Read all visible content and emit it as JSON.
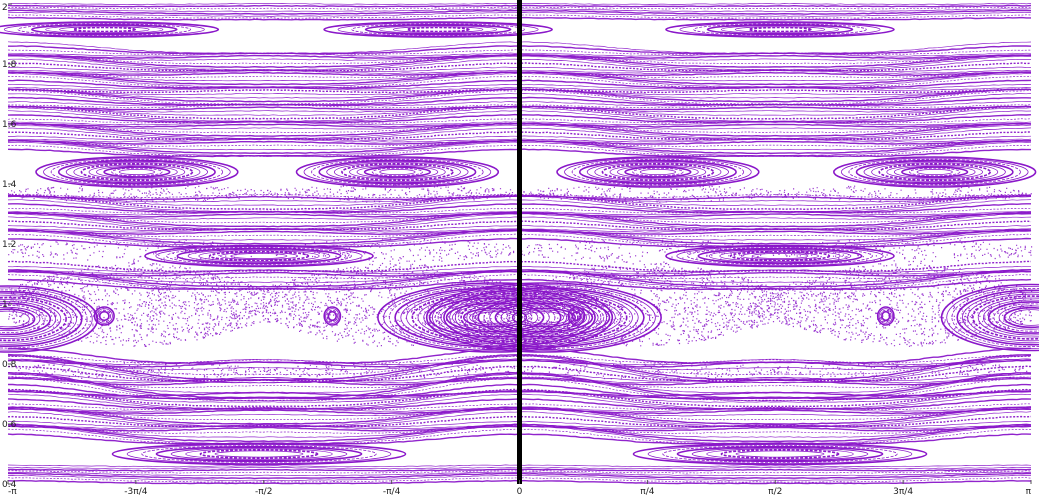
{
  "chart_data": {
    "type": "scatter",
    "title": "",
    "xlabel": "",
    "ylabel": "",
    "xlim": [
      -3.14159,
      3.14159
    ],
    "ylim": [
      0.4,
      2.0
    ],
    "grid": false,
    "legend": "none",
    "point_color": "#8a17c9",
    "axis_line_color": "#000000",
    "x_ticks": [
      {
        "value": -3.14159,
        "label": "-π"
      },
      {
        "value": -2.35619,
        "label": "-3π/4"
      },
      {
        "value": -1.5708,
        "label": "-π/2"
      },
      {
        "value": -0.7854,
        "label": "-π/4"
      },
      {
        "value": 0,
        "label": "0"
      },
      {
        "value": 0.7854,
        "label": "π/4"
      },
      {
        "value": 1.5708,
        "label": "π/2"
      },
      {
        "value": 2.35619,
        "label": "3π/4"
      },
      {
        "value": 3.14159,
        "label": "π"
      }
    ],
    "y_ticks": [
      {
        "value": 0.4,
        "label": "0.4"
      },
      {
        "value": 0.6,
        "label": "0.6"
      },
      {
        "value": 0.8,
        "label": "0.8"
      },
      {
        "value": 1.0,
        "label": "1"
      },
      {
        "value": 1.2,
        "label": "1.2"
      },
      {
        "value": 1.4,
        "label": "1.4"
      },
      {
        "value": 1.6,
        "label": "1.6"
      },
      {
        "value": 1.8,
        "label": "1.8"
      },
      {
        "value": 2.0,
        "label": "2"
      }
    ],
    "series": [
      {
        "kind": "island_chains",
        "description_points": [
          {
            "x": -3.14159,
            "y": 0.95
          },
          {
            "x": -0.3,
            "y": 0.955
          },
          {
            "x": 0.0,
            "y": 0.955
          },
          {
            "x": 2.95,
            "y": 0.955
          },
          {
            "x": -2.4,
            "y": 1.44
          },
          {
            "x": -0.7,
            "y": 1.44
          },
          {
            "x": 0.9,
            "y": 1.44
          },
          {
            "x": 2.6,
            "y": 1.44
          },
          {
            "x": -1.6,
            "y": 1.16
          },
          {
            "x": 1.6,
            "y": 1.16
          },
          {
            "x": -1.6,
            "y": 0.5
          },
          {
            "x": 1.6,
            "y": 0.5
          },
          {
            "x": -2.6,
            "y": 1.915
          },
          {
            "x": -0.5,
            "y": 1.915
          },
          {
            "x": 1.6,
            "y": 1.915
          }
        ]
      }
    ]
  }
}
